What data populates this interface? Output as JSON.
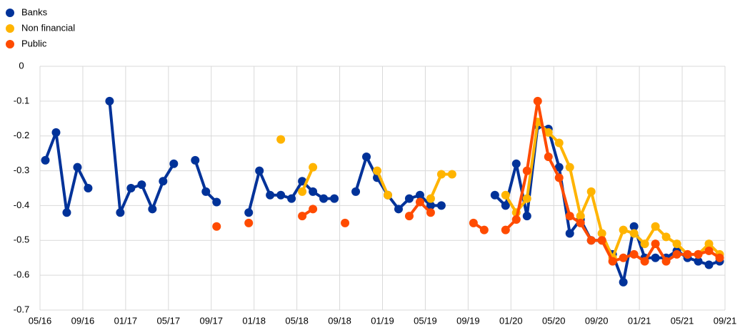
{
  "chart_data": {
    "type": "line",
    "x": [
      "2016-05",
      "2016-06",
      "2016-07",
      "2016-08",
      "2016-09",
      "2016-10",
      "2016-11",
      "2016-12",
      "2017-01",
      "2017-02",
      "2017-03",
      "2017-04",
      "2017-05",
      "2017-06",
      "2017-07",
      "2017-08",
      "2017-09",
      "2017-10",
      "2017-11",
      "2017-12",
      "2018-01",
      "2018-02",
      "2018-03",
      "2018-04",
      "2018-05",
      "2018-06",
      "2018-07",
      "2018-08",
      "2018-09",
      "2018-10",
      "2018-11",
      "2018-12",
      "2019-01",
      "2019-02",
      "2019-03",
      "2019-04",
      "2019-05",
      "2019-06",
      "2019-07",
      "2019-08",
      "2019-09",
      "2019-10",
      "2019-11",
      "2019-12",
      "2020-01",
      "2020-02",
      "2020-03",
      "2020-04",
      "2020-05",
      "2020-06",
      "2020-07",
      "2020-08",
      "2020-09",
      "2020-10",
      "2020-11",
      "2020-12",
      "2021-01",
      "2021-02",
      "2021-03",
      "2021-04",
      "2021-05",
      "2021-06",
      "2021-07",
      "2021-08"
    ],
    "series": [
      {
        "name": "Banks",
        "color": "#003299",
        "values": [
          -0.27,
          -0.19,
          -0.42,
          -0.29,
          -0.35,
          null,
          -0.1,
          -0.42,
          -0.35,
          -0.34,
          -0.41,
          -0.33,
          -0.28,
          null,
          -0.27,
          -0.36,
          -0.39,
          null,
          null,
          -0.42,
          -0.3,
          -0.37,
          -0.37,
          -0.38,
          -0.33,
          -0.36,
          -0.38,
          -0.38,
          null,
          -0.36,
          -0.26,
          -0.32,
          -0.37,
          -0.41,
          -0.38,
          -0.37,
          -0.4,
          -0.4,
          null,
          null,
          null,
          null,
          -0.37,
          -0.4,
          -0.28,
          -0.43,
          -0.17,
          -0.18,
          -0.29,
          -0.48,
          -0.44,
          -0.5,
          -0.5,
          -0.54,
          -0.62,
          -0.46,
          -0.55,
          -0.55,
          -0.55,
          -0.53,
          -0.55,
          -0.56,
          -0.57,
          -0.56
        ]
      },
      {
        "name": "Non financial",
        "color": "#ffb400",
        "values": [
          null,
          null,
          null,
          null,
          null,
          null,
          null,
          null,
          null,
          null,
          null,
          null,
          null,
          null,
          null,
          null,
          null,
          null,
          null,
          null,
          null,
          null,
          -0.21,
          null,
          -0.36,
          -0.29,
          null,
          null,
          null,
          null,
          null,
          -0.3,
          -0.37,
          null,
          null,
          null,
          -0.38,
          -0.31,
          -0.31,
          null,
          null,
          null,
          null,
          -0.37,
          -0.42,
          -0.38,
          -0.16,
          -0.19,
          -0.22,
          -0.29,
          -0.43,
          -0.36,
          -0.48,
          -0.55,
          -0.47,
          -0.48,
          -0.51,
          -0.46,
          -0.49,
          -0.51,
          -0.54,
          -0.54,
          -0.51,
          -0.54
        ]
      },
      {
        "name": "Public",
        "color": "#ff4b00",
        "values": [
          null,
          null,
          null,
          null,
          null,
          null,
          null,
          null,
          null,
          null,
          null,
          null,
          null,
          null,
          null,
          null,
          -0.46,
          null,
          null,
          -0.45,
          null,
          null,
          null,
          null,
          -0.43,
          -0.41,
          null,
          null,
          -0.45,
          null,
          null,
          null,
          null,
          null,
          -0.43,
          -0.39,
          -0.42,
          null,
          null,
          null,
          -0.45,
          -0.47,
          null,
          -0.47,
          -0.44,
          -0.3,
          -0.1,
          -0.26,
          -0.32,
          -0.43,
          -0.45,
          -0.5,
          -0.5,
          -0.56,
          -0.55,
          -0.54,
          -0.56,
          -0.51,
          -0.56,
          -0.54,
          -0.54,
          -0.54,
          -0.53,
          -0.55
        ]
      }
    ],
    "xlim": [
      "2016-05",
      "2021-09"
    ],
    "xticks": [
      {
        "value": "2016-05",
        "label": "05/16"
      },
      {
        "value": "2016-09",
        "label": "09/16"
      },
      {
        "value": "2017-01",
        "label": "01/17"
      },
      {
        "value": "2017-05",
        "label": "05/17"
      },
      {
        "value": "2017-09",
        "label": "09/17"
      },
      {
        "value": "2018-01",
        "label": "01/18"
      },
      {
        "value": "2018-05",
        "label": "05/18"
      },
      {
        "value": "2018-09",
        "label": "09/18"
      },
      {
        "value": "2019-01",
        "label": "01/19"
      },
      {
        "value": "2019-05",
        "label": "05/19"
      },
      {
        "value": "2019-09",
        "label": "09/19"
      },
      {
        "value": "2020-01",
        "label": "01/20"
      },
      {
        "value": "2020-05",
        "label": "05/20"
      },
      {
        "value": "2020-09",
        "label": "09/20"
      },
      {
        "value": "2021-01",
        "label": "01/21"
      },
      {
        "value": "2021-05",
        "label": "05/21"
      },
      {
        "value": "2021-09",
        "label": "09/21"
      }
    ],
    "ylim": [
      -0.7,
      0
    ],
    "yticks": [
      0,
      -0.1,
      -0.2,
      -0.3,
      -0.4,
      -0.5,
      -0.6,
      -0.7
    ],
    "grid": true,
    "legend": "top-left"
  }
}
